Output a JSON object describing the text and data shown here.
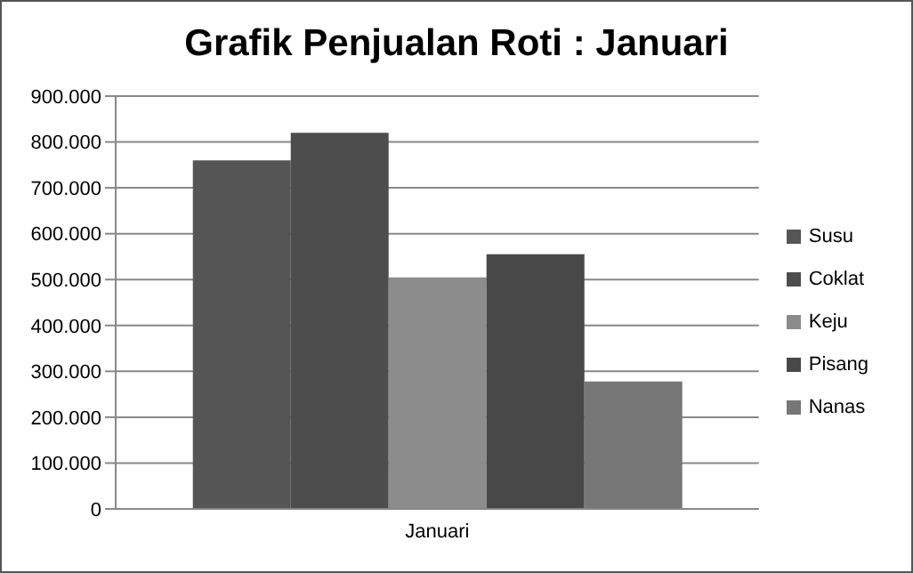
{
  "chart_data": {
    "type": "bar",
    "title": "Grafik Penjualan Roti : Januari",
    "categories": [
      "Januari"
    ],
    "series": [
      {
        "name": "Susu",
        "color": "#555555",
        "values": [
          760000
        ]
      },
      {
        "name": "Coklat",
        "color": "#4d4d4d",
        "values": [
          820000
        ]
      },
      {
        "name": "Keju",
        "color": "#8c8c8c",
        "values": [
          505000
        ]
      },
      {
        "name": "Pisang",
        "color": "#484848",
        "values": [
          555000
        ]
      },
      {
        "name": "Nanas",
        "color": "#777777",
        "values": [
          278000
        ]
      }
    ],
    "ylim": [
      0,
      900000
    ],
    "yticks": [
      0,
      {
        "value": 100000,
        "label": "100.000"
      },
      {
        "value": 200000,
        "label": "200.000"
      },
      {
        "value": 300000,
        "label": "300.000"
      },
      {
        "value": 400000,
        "label": "400.000"
      },
      {
        "value": 500000,
        "label": "500.000"
      },
      {
        "value": 600000,
        "label": "600.000"
      },
      {
        "value": 700000,
        "label": "700.000"
      },
      {
        "value": 800000,
        "label": "800.000"
      },
      {
        "value": 900000,
        "label": "900.000"
      }
    ],
    "grid": "y",
    "legend": "right"
  }
}
